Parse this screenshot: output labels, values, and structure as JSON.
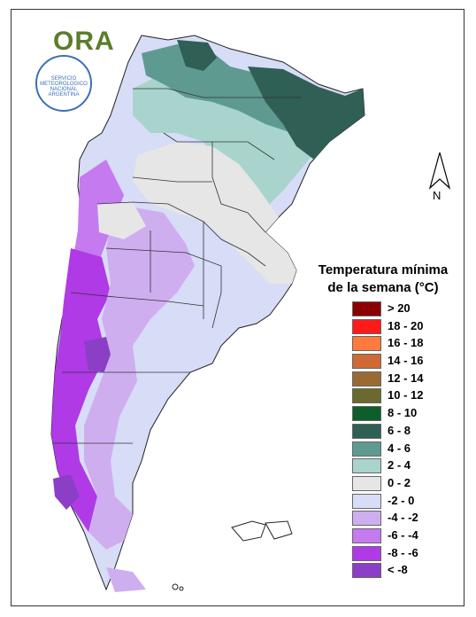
{
  "logo": {
    "text": "ORA"
  },
  "seal": {
    "text": "SERVICIO METEOROLOGICO NACIONAL ARGENTINA"
  },
  "compass": {
    "label": "N"
  },
  "legend": {
    "title_line1": "Temperatura mínima",
    "title_line2": "de la semana (°C)",
    "items": [
      {
        "label": "> 20",
        "color": "#8b0000"
      },
      {
        "label": "18 - 20",
        "color": "#ff1a1a"
      },
      {
        "label": "16 - 18",
        "color": "#ff7a3d"
      },
      {
        "label": "14 - 16",
        "color": "#cf6a36"
      },
      {
        "label": "12 - 14",
        "color": "#9a6a34"
      },
      {
        "label": "10 - 12",
        "color": "#6b6a2e"
      },
      {
        "label": "8 - 10",
        "color": "#0d5e2a"
      },
      {
        "label": "6 - 8",
        "color": "#2f5f55"
      },
      {
        "label": "4 - 6",
        "color": "#5f9a90"
      },
      {
        "label": "2 - 4",
        "color": "#a9d4cd"
      },
      {
        "label": "0 - 2",
        "color": "#e6e6e6"
      },
      {
        "label": "-2 - 0",
        "color": "#d7dcf7"
      },
      {
        "label": "-4 - -2",
        "color": "#cfaef0"
      },
      {
        "label": "-6 - -4",
        "color": "#c57aef"
      },
      {
        "label": "-8 - -6",
        "color": "#b03ae6"
      },
      {
        "label": "< -8",
        "color": "#8b3fc6"
      }
    ]
  }
}
